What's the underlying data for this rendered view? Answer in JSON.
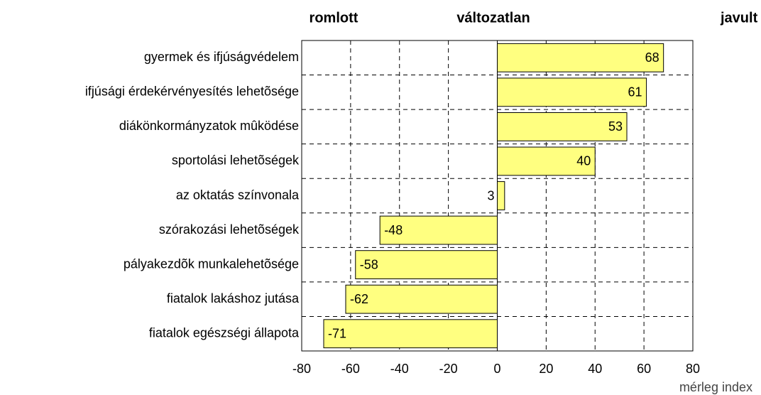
{
  "chart_data": {
    "type": "bar",
    "orientation": "horizontal",
    "headers": [
      "romlott",
      "változatlan",
      "javult"
    ],
    "xlabel": "mérleg index",
    "categories": [
      "gyermek és ifjúságvédelem",
      "ifjúsági érdekérvényesítés lehetõsége",
      "diákönkormányzatok mûködése",
      "sportolási lehetõségek",
      "az oktatás színvonala",
      "szórakozási lehetõségek",
      "pályakezdõk munkalehetõsége",
      "fiatalok lakáshoz jutása",
      "fiatalok egészségi állapota"
    ],
    "values": [
      68,
      61,
      53,
      40,
      3,
      -48,
      -58,
      -62,
      -71
    ],
    "color": "#ffff80",
    "xlim": [
      -80,
      80
    ],
    "xticks": [
      -80,
      -60,
      -40,
      -20,
      0,
      20,
      40,
      60,
      80
    ],
    "grid": true
  }
}
